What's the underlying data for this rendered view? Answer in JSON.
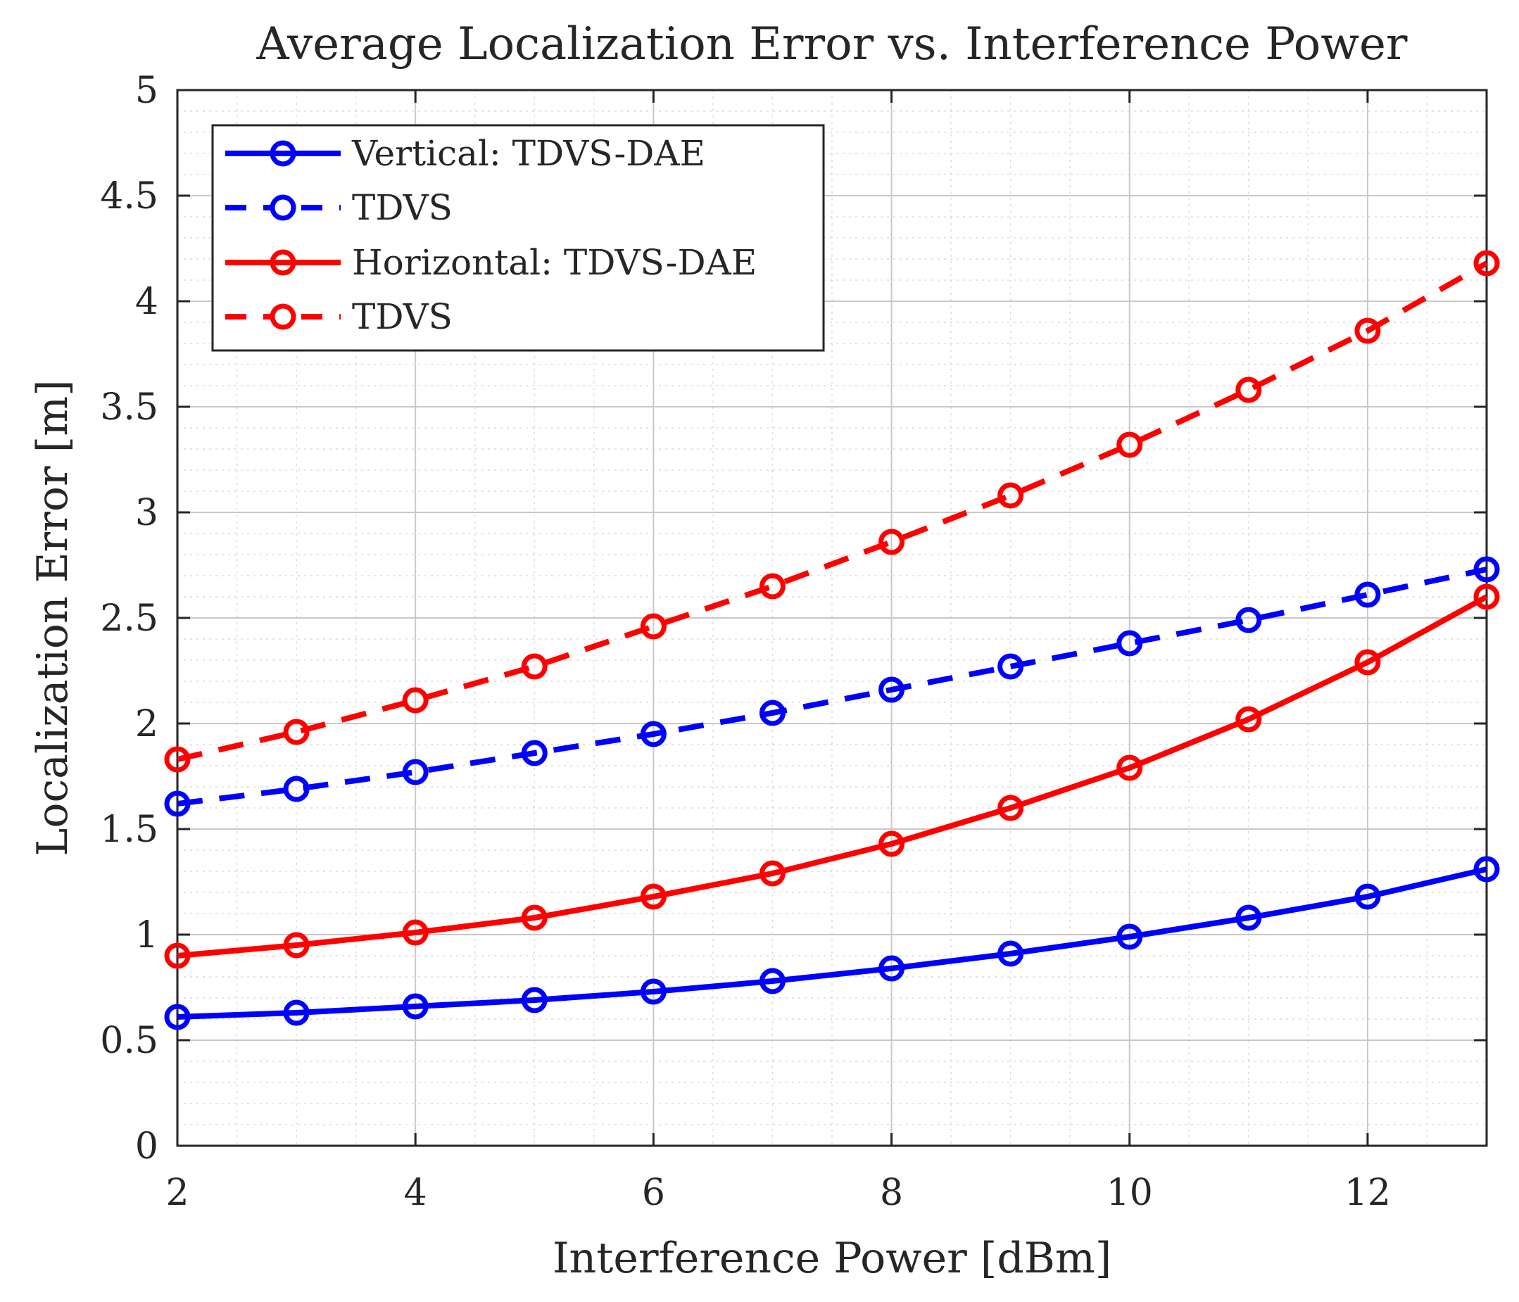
{
  "chart_data": {
    "type": "line",
    "title": "Average Localization Error vs. Interference Power",
    "xlabel": "Interference Power [dBm]",
    "ylabel": "Localization Error [m]",
    "xlim": [
      2,
      13
    ],
    "ylim": [
      0,
      5
    ],
    "xticks": [
      2,
      4,
      6,
      8,
      10,
      12
    ],
    "xtick_labels": [
      "2",
      "4",
      "6",
      "8",
      "10",
      "12"
    ],
    "yticks": [
      0,
      0.5,
      1,
      1.5,
      2,
      2.5,
      3,
      3.5,
      4,
      4.5,
      5
    ],
    "ytick_labels": [
      "0",
      "0.5",
      "1",
      "1.5",
      "2",
      "2.5",
      "3",
      "3.5",
      "4",
      "4.5",
      "5"
    ],
    "grid": true,
    "minor_grid": true,
    "legend_position": "top-left",
    "x": [
      2,
      3,
      4,
      5,
      6,
      7,
      8,
      9,
      10,
      11,
      12,
      13
    ],
    "series": [
      {
        "name": "Vertical: TDVS-DAE",
        "color": "#0000ff",
        "style": "solid",
        "marker": "circle",
        "values": [
          0.61,
          0.63,
          0.66,
          0.69,
          0.73,
          0.78,
          0.84,
          0.91,
          0.99,
          1.08,
          1.18,
          1.31
        ]
      },
      {
        "name": "TDVS",
        "color": "#0000ff",
        "style": "dashed",
        "marker": "circle",
        "values": [
          1.62,
          1.69,
          1.77,
          1.86,
          1.95,
          2.05,
          2.16,
          2.27,
          2.38,
          2.49,
          2.61,
          2.73
        ]
      },
      {
        "name": "Horizontal: TDVS-DAE",
        "color": "#ff0000",
        "style": "solid",
        "marker": "circle",
        "values": [
          0.9,
          0.95,
          1.01,
          1.08,
          1.18,
          1.29,
          1.43,
          1.6,
          1.79,
          2.02,
          2.29,
          2.6
        ]
      },
      {
        "name": "TDVS",
        "color": "#ff0000",
        "style": "dashed",
        "marker": "circle",
        "values": [
          1.83,
          1.96,
          2.11,
          2.27,
          2.46,
          2.65,
          2.86,
          3.08,
          3.32,
          3.58,
          3.86,
          4.18
        ]
      }
    ]
  }
}
